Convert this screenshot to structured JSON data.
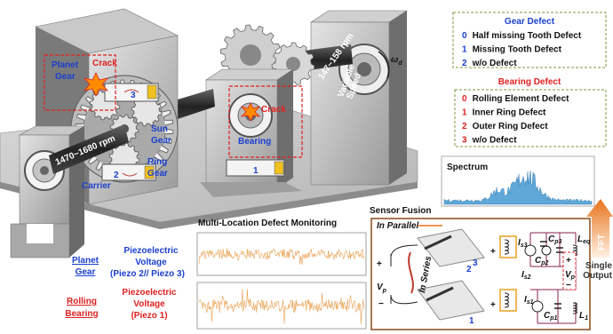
{
  "gear_defect": {
    "title": "Gear Defect",
    "items": [
      {
        "index": "0",
        "label": "Half missing Tooth Defect"
      },
      {
        "index": "1",
        "label": "Missing Tooth Defect"
      },
      {
        "index": "2",
        "label": "w/o Defect"
      }
    ]
  },
  "bearing_defect": {
    "title": "Bearing Defect",
    "items": [
      {
        "index": "0",
        "label": "Rolling Element Defect"
      },
      {
        "index": "1",
        "label": "Inner Ring Defect"
      },
      {
        "index": "2",
        "label": "Outer Ring Defect"
      },
      {
        "index": "3",
        "label": "w/o Defect"
      }
    ]
  },
  "machine": {
    "planet_gear": [
      "Planet",
      "Gear"
    ],
    "crack_gear": "Crack",
    "sun_gear": [
      "Sun",
      "Gear"
    ],
    "ring_gear": [
      "Ring",
      "Gear"
    ],
    "carrier": "Carrier",
    "input_speed": "1470~1680 rpm",
    "output_speed": "147~158 rpm",
    "variable_speed": [
      "Variable",
      "Speed"
    ],
    "omega": {
      "base": "ω",
      "sub": "d"
    },
    "bearing": "Bearing",
    "crack_bearing": "Crack",
    "sensors": [
      "3",
      "2",
      "1"
    ]
  },
  "spectrum": {
    "title": "Spectrum",
    "fft": "FFT"
  },
  "monitoring": {
    "title": "Multi-Location Defect Monitoring",
    "planet_gear": {
      "label": [
        "Planet",
        "Gear"
      ],
      "signal": [
        "Piezoelectric",
        "Voltage",
        "(Piezo 2// Piezo 3)"
      ]
    },
    "rolling_bearing": {
      "label": [
        "Rolling",
        "Bearing"
      ],
      "signal": [
        "Piezoelectric",
        "Voltage",
        "(Piezo 1)"
      ]
    }
  },
  "sensor_fusion": {
    "title": "Sensor Fusion",
    "in_parallel": "In Parallel",
    "in_series": "In Series",
    "piezo_labels": [
      "2",
      "3",
      "1"
    ],
    "vp": {
      "base": "V",
      "sub": "p"
    },
    "plus": "+",
    "minus": "−",
    "circuit": {
      "is3": {
        "base": "I",
        "sub": "s3"
      },
      "cp3": {
        "base": "C",
        "sub": "p3"
      },
      "is2": {
        "base": "I",
        "sub": "s2"
      },
      "cp2": {
        "base": "C",
        "sub": "p2"
      },
      "leq": {
        "base": "L",
        "sub": "eq"
      },
      "is1": {
        "base": "I",
        "sub": "s1"
      },
      "cp1": {
        "base": "C",
        "sub": "p1"
      },
      "l1": {
        "base": "L",
        "sub": "1"
      }
    },
    "single_output": [
      "Single",
      "Output"
    ]
  }
}
